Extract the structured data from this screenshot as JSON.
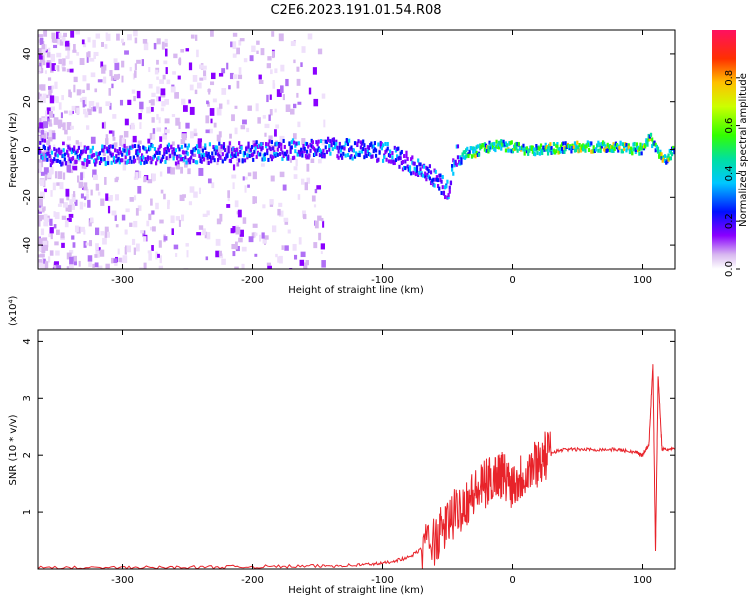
{
  "title": "C2E6.2023.191.01.54.R08",
  "chart_data": [
    {
      "type": "heatmap",
      "xlabel": "Height of straight line (km)",
      "ylabel": "Frequency (Hz)",
      "xlim": [
        -365,
        125
      ],
      "ylim": [
        -50,
        50
      ],
      "x_ticks": [
        -300,
        -200,
        -100,
        0,
        100
      ],
      "x_tick_labels": [
        "-300",
        "-200",
        "-100",
        "0",
        "100"
      ],
      "y_ticks": [
        -40,
        -20,
        0,
        20,
        40
      ],
      "y_tick_labels": [
        "-40",
        "-20",
        "0",
        "20",
        "40"
      ],
      "colorbar": {
        "label": "Normalized spectral amplitude",
        "range": [
          0,
          1
        ],
        "ticks": [
          0.0,
          0.2,
          0.4,
          0.6,
          0.8
        ],
        "tick_labels": [
          "0.0",
          "0.2",
          "0.4",
          "0.6",
          "0.8"
        ]
      },
      "ridge": {
        "x": [
          -360,
          -300,
          -250,
          -200,
          -150,
          -120,
          -100,
          -90,
          -80,
          -70,
          -60,
          -50,
          -45,
          -40,
          -30,
          -20,
          -10,
          0,
          10,
          20,
          50,
          80,
          100,
          105,
          110,
          115,
          125
        ],
        "y": [
          -3,
          -2,
          -2,
          -1,
          1,
          0,
          -1,
          -3,
          -6,
          -8,
          -12,
          -18,
          -3,
          -2,
          -1,
          1,
          2,
          1,
          0,
          0,
          1,
          1,
          0,
          5,
          0,
          -5,
          0
        ]
      }
    },
    {
      "type": "line",
      "xlabel": "Height of straight line (km)",
      "ylabel": "SNR (10 * v/v)",
      "y_scale_label": "(x10⁴)",
      "xlim": [
        -365,
        125
      ],
      "ylim": [
        0,
        4.2
      ],
      "x_ticks": [
        -300,
        -200,
        -100,
        0,
        100
      ],
      "x_tick_labels": [
        "-300",
        "-200",
        "-100",
        "0",
        "100"
      ],
      "y_ticks": [
        1,
        2,
        3,
        4
      ],
      "y_tick_labels": [
        "1",
        "2",
        "3",
        "4"
      ],
      "series": [
        {
          "color": "#e8232a",
          "x": [
            -365,
            -300,
            -250,
            -200,
            -150,
            -120,
            -100,
            -80,
            -60,
            -50,
            -40,
            -30,
            -20,
            -10,
            0,
            10,
            20,
            30,
            40,
            60,
            80,
            95,
            100,
            105,
            108,
            110,
            112,
            115,
            125
          ],
          "y": [
            0.02,
            0.02,
            0.03,
            0.04,
            0.05,
            0.07,
            0.1,
            0.2,
            0.5,
            0.8,
            1.1,
            1.3,
            1.5,
            1.7,
            1.5,
            1.7,
            1.9,
            2.05,
            2.1,
            2.1,
            2.1,
            2.05,
            2.0,
            2.2,
            3.6,
            0.3,
            3.4,
            2.1,
            2.1
          ]
        }
      ]
    }
  ],
  "colors": {
    "line": "#e8232a",
    "axis": "#000000",
    "bg": "#ffffff"
  }
}
